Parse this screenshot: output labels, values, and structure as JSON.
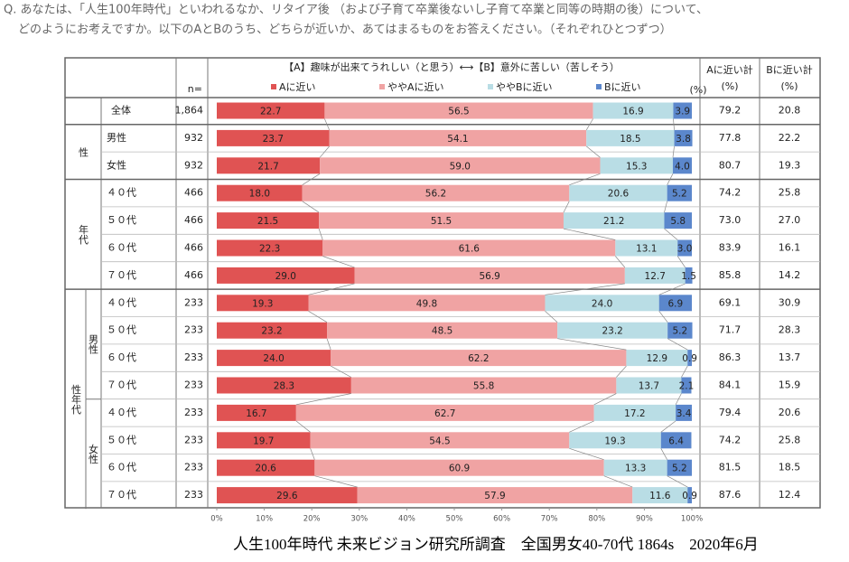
{
  "question": [
    "Q. あなたは、「人生100年時代」といわれるなか、リタイア後 （および子育て卒業後ないし子育て卒業と同等の時期の後）について、",
    "どのようにお考えですか。以下のAとBのうち、どちらが近いか、あてはまるものをお答えください。（それぞれひとつずつ）"
  ],
  "chart_data": {
    "type": "stacked_barh",
    "title": "【A】趣味が出来てうれしい（と思う）⟷【B】意外に苦しい（苦しそう）",
    "unit_label": "(%)",
    "n_label": "n=",
    "categories": [
      "全体",
      "男性",
      "女性",
      "４０代",
      "５０代",
      "６０代",
      "７０代",
      "４０代",
      "５０代",
      "６０代",
      "７０代",
      "４０代",
      "５０代",
      "６０代",
      "７０代"
    ],
    "groups": [
      {
        "label": "性",
        "start": 1,
        "rows": 2
      },
      {
        "label": "年代",
        "start": 3,
        "rows": 4
      },
      {
        "label": "性年代",
        "start": 7,
        "rows": 8,
        "subgroups": [
          {
            "label": "男性",
            "start": 7,
            "rows": 4
          },
          {
            "label": "女性",
            "start": 11,
            "rows": 4
          }
        ]
      }
    ],
    "n": [
      "1,864",
      "932",
      "932",
      "466",
      "466",
      "466",
      "466",
      "233",
      "233",
      "233",
      "233",
      "233",
      "233",
      "233",
      "233"
    ],
    "series": [
      {
        "name": "Aに近い",
        "color": "#e05353",
        "values": [
          22.7,
          23.7,
          21.7,
          18.0,
          21.5,
          22.3,
          29.0,
          19.3,
          23.2,
          24.0,
          28.3,
          16.7,
          19.7,
          20.6,
          29.6
        ],
        "value_labels": [
          "22.7",
          "23.7",
          "21.7",
          "18.0",
          "21.5",
          "22.3",
          "29.0",
          "19.3",
          "23.2",
          "24.0",
          "28.3",
          "16.7",
          "19.7",
          "20.6",
          "29.6"
        ]
      },
      {
        "name": "ややAに近い",
        "color": "#f0a3a3",
        "values": [
          56.5,
          54.1,
          59.0,
          56.2,
          51.5,
          61.6,
          56.9,
          49.8,
          48.5,
          62.2,
          55.8,
          62.7,
          54.5,
          60.9,
          57.9
        ],
        "value_labels": [
          "56.5",
          "54.1",
          "59.0",
          "56.2",
          "51.5",
          "61.6",
          "56.9",
          "49.8",
          "48.5",
          "62.2",
          "55.8",
          "62.7",
          "54.5",
          "60.9",
          "57.9"
        ]
      },
      {
        "name": "ややBに近い",
        "color": "#b9dde5",
        "values": [
          16.9,
          18.5,
          15.3,
          20.6,
          21.2,
          13.1,
          12.7,
          24.0,
          23.2,
          12.9,
          13.7,
          17.2,
          19.3,
          13.3,
          11.6
        ],
        "value_labels": [
          "16.9",
          "18.5",
          "15.3",
          "20.6",
          "21.2",
          "13.1",
          "12.7",
          "24.0",
          "23.2",
          "12.9",
          "13.7",
          "17.2",
          "19.3",
          "13.3",
          "11.6"
        ]
      },
      {
        "name": "Bに近い",
        "color": "#5b87cc",
        "values": [
          3.9,
          3.8,
          4.0,
          5.2,
          5.8,
          3.0,
          1.5,
          6.9,
          5.2,
          0.9,
          2.1,
          3.4,
          6.4,
          5.2,
          0.9
        ],
        "value_labels": [
          "3.9",
          "3.8",
          "4.0",
          "5.2",
          "5.8",
          "3.0",
          "1.5",
          "6.9",
          "5.2",
          "0.9",
          "2.1",
          "3.4",
          "6.4",
          "5.2",
          "0.9"
        ]
      }
    ],
    "a_total": {
      "header": "Aに近い計",
      "unit": "(%)",
      "values": [
        79.2,
        77.8,
        80.7,
        74.2,
        73.0,
        83.9,
        85.8,
        69.1,
        71.7,
        86.3,
        84.1,
        79.4,
        74.2,
        81.5,
        87.6
      ],
      "value_labels": [
        "79.2",
        "77.8",
        "80.7",
        "74.2",
        "73.0",
        "83.9",
        "85.8",
        "69.1",
        "71.7",
        "86.3",
        "84.1",
        "79.4",
        "74.2",
        "81.5",
        "87.6"
      ]
    },
    "b_total": {
      "header": "Bに近い計",
      "unit": "(%)",
      "values": [
        20.8,
        22.2,
        19.3,
        25.8,
        27.0,
        16.1,
        14.2,
        30.9,
        28.3,
        13.7,
        15.9,
        20.6,
        25.8,
        18.5,
        12.4
      ],
      "value_labels": [
        "20.8",
        "22.2",
        "19.3",
        "25.8",
        "27.0",
        "16.1",
        "14.2",
        "30.9",
        "28.3",
        "13.7",
        "15.9",
        "20.6",
        "25.8",
        "18.5",
        "12.4"
      ]
    },
    "xlim": [
      0,
      100
    ],
    "xticks": [
      {
        "value": 0,
        "label": "0%"
      },
      {
        "value": 10,
        "label": "10%"
      },
      {
        "value": 20,
        "label": "20%"
      },
      {
        "value": 30,
        "label": "30%"
      },
      {
        "value": 40,
        "label": "40%"
      },
      {
        "value": 50,
        "label": "50%"
      },
      {
        "value": 60,
        "label": "60%"
      },
      {
        "value": 70,
        "label": "70%"
      },
      {
        "value": 80,
        "label": "80%"
      },
      {
        "value": 90,
        "label": "90%"
      },
      {
        "value": 100,
        "label": "100%"
      }
    ],
    "source": "人生100年時代 未来ビジョン研究所調査　全国男女40-70代 1864s　2020年6月"
  }
}
